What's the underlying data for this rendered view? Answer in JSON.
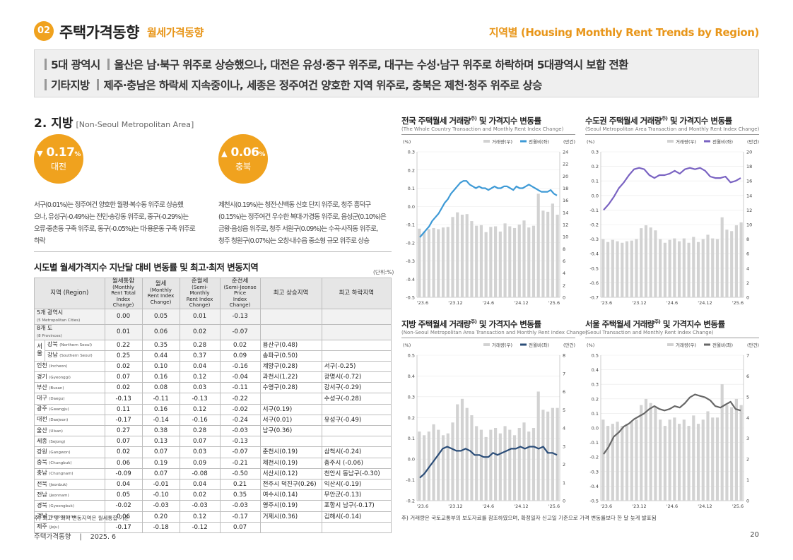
{
  "header": {
    "badge": "02",
    "title": "주택가격동향",
    "subtitle": "월세가격동향",
    "right": "지역별 (Housing Monthly Rent Trends by Region)"
  },
  "summary": {
    "line1_tag": "5대 광역시",
    "line1_text": "울산은 남·북구 위주로 상승했으나, 대전은 유성·중구 위주로, 대구는 수성·남구 위주로 하락하며 5대광역시 보합 전환",
    "line2_tag": "기타지방",
    "line2_text": "제주·충남은 하락세 지속중이나, 세종은 정주여건 양호한 지역 위주로, 충북은 제천·청주 위주로 상승"
  },
  "region": {
    "heading": "2. 지방",
    "heading_en": "[Non-Seoul Metropolitan Area]",
    "down": {
      "arrow": "▼",
      "value": "0.17",
      "unit": "%",
      "name": "대전"
    },
    "up": {
      "arrow": "▲",
      "value": "0.06",
      "unit": "%",
      "name": "충북"
    },
    "down_desc": [
      "서구(0.01%)는 정주여건 양호한 월평·복수동 위주로 상승했",
      "으나, 유성구(-0.49%)는 전민·송강동 위주로, 중구(-0.29%)는",
      "오류·중촌동 구축 위주로, 동구(-0.05%)는 대·용운동 구축 위주로",
      "하락"
    ],
    "up_desc": [
      "제천시(0.19%)는 청전·신백동 신호 단지 위주로, 청주 흥덕구",
      "(0.15%)는 정주여건 우수한 복대·가경동 위주로, 음성군(0.10%)은",
      "금왕·음성읍 위주로, 청주 서원구(0.09%)는 수곡·사직동 위주로,",
      "청주 청원구(0.07%)는 오창·내수읍 중소형 규모 위주로 상승"
    ]
  },
  "table": {
    "title": "시도별 월세가격지수 지난달 대비 변동률 및 최고·최저 변동지역",
    "unit": "(단위:%)",
    "headers": [
      "지역 (Region)",
      "월세통합",
      "(Monthly Rent Total",
      "Index Change)",
      "월세",
      "(Monthly Rent Index",
      "Change)",
      "준월세",
      "(Semi-Monthly",
      "Rent Index Change)",
      "준전세",
      "(Semi-Jeonse Price",
      "Index Change)",
      "최고 상승지역",
      "최고 하락지역"
    ],
    "rows": [
      {
        "k": "5개 광역시",
        "en": "(5 Metropolitan Cities)",
        "a": "0.00",
        "b": "0.05",
        "c": "0.01",
        "d": "-0.13",
        "up": "",
        "dn": ""
      },
      {
        "k": "8개 도",
        "en": "(8 Provinces)",
        "a": "0.01",
        "b": "0.06",
        "c": "0.02",
        "d": "-0.07",
        "up": "",
        "dn": ""
      },
      {
        "k": "강북",
        "en": "(Northern Seoul)",
        "a": "0.22",
        "b": "0.35",
        "c": "0.28",
        "d": "0.02",
        "up": "용산구(0.48)",
        "dn": ""
      },
      {
        "k": "강남",
        "en": "(Southern Seoul)",
        "a": "0.25",
        "b": "0.44",
        "c": "0.37",
        "d": "0.09",
        "up": "송파구(0.50)",
        "dn": ""
      },
      {
        "k": "인천",
        "en": "(Incheon)",
        "a": "0.02",
        "b": "0.10",
        "c": "0.04",
        "d": "-0.16",
        "up": "계양구(0.28)",
        "dn": "서구(-0.25)"
      },
      {
        "k": "경기",
        "en": "(Gyeonggi)",
        "a": "0.07",
        "b": "0.16",
        "c": "0.12",
        "d": "-0.04",
        "up": "과천시(1.22)",
        "dn": "광명시(-0.72)"
      },
      {
        "k": "부산",
        "en": "(Busan)",
        "a": "0.02",
        "b": "0.08",
        "c": "0.03",
        "d": "-0.11",
        "up": "수영구(0.28)",
        "dn": "강서구(-0.29)"
      },
      {
        "k": "대구",
        "en": "(Daegu)",
        "a": "-0.13",
        "b": "-0.11",
        "c": "-0.13",
        "d": "-0.22",
        "up": "",
        "dn": "수성구(-0.28)"
      },
      {
        "k": "광주",
        "en": "(Gwangju)",
        "a": "0.11",
        "b": "0.16",
        "c": "0.12",
        "d": "-0.02",
        "up": "서구(0.19)",
        "dn": ""
      },
      {
        "k": "대전",
        "en": "(Daejeon)",
        "a": "-0.17",
        "b": "-0.14",
        "c": "-0.16",
        "d": "-0.24",
        "up": "서구(0.01)",
        "dn": "유성구(-0.49)"
      },
      {
        "k": "울산",
        "en": "(Ulsan)",
        "a": "0.27",
        "b": "0.38",
        "c": "0.28",
        "d": "-0.03",
        "up": "남구(0.36)",
        "dn": ""
      },
      {
        "k": "세종",
        "en": "(Sejong)",
        "a": "0.07",
        "b": "0.13",
        "c": "0.07",
        "d": "-0.13",
        "up": "",
        "dn": ""
      },
      {
        "k": "강원",
        "en": "(Gangwon)",
        "a": "0.02",
        "b": "0.07",
        "c": "0.03",
        "d": "-0.07",
        "up": "춘천시(0.19)",
        "dn": "삼척시(-0.24)"
      },
      {
        "k": "충북",
        "en": "(Chungbuk)",
        "a": "0.06",
        "b": "0.19",
        "c": "0.09",
        "d": "-0.21",
        "up": "제천시(0.19)",
        "dn": "충주시 (-0.06)"
      },
      {
        "k": "충남",
        "en": "(Chungnam)",
        "a": "-0.09",
        "b": "0.07",
        "c": "-0.08",
        "d": "-0.50",
        "up": "서산시(0.12)",
        "dn": "천안시 동남구(-0.30)"
      },
      {
        "k": "전북",
        "en": "(Jeonbuk)",
        "a": "0.04",
        "b": "-0.01",
        "c": "0.04",
        "d": "0.21",
        "up": "전주시 덕진구(0.26)",
        "dn": "익산시(-0.19)"
      },
      {
        "k": "전남",
        "en": "(Jeonnam)",
        "a": "0.05",
        "b": "-0.10",
        "c": "0.02",
        "d": "0.35",
        "up": "여수시(0.14)",
        "dn": "무안군(-0.13)"
      },
      {
        "k": "경북",
        "en": "(Gyeongbuk)",
        "a": "-0.02",
        "b": "-0.03",
        "c": "-0.03",
        "d": "-0.03",
        "up": "영주시(0.19)",
        "dn": "포항시 남구(-0.17)"
      },
      {
        "k": "경남",
        "en": "(Gyeongnam)",
        "a": "0.06",
        "b": "0.20",
        "c": "0.12",
        "d": "-0.17",
        "up": "거제시(0.36)",
        "dn": "김해시(-0.14)"
      },
      {
        "k": "제주",
        "en": "(Jeju)",
        "a": "-0.17",
        "b": "-0.18",
        "c": "-0.12",
        "d": "0.07",
        "up": "",
        "dn": ""
      }
    ],
    "seoul_label": "서울"
  },
  "notes": {
    "left": "주) 최고 및 최저 변동지역은 월세통합 기준",
    "right": "주) 거래량은 국토교통부의 보도자료를 참조하였으며, 확정일자 신고일 기준으로 가격 변동률보다 한 달 늦게 발표됨"
  },
  "footer": {
    "left": "주택가격동향    |    2025. 6",
    "page": "20"
  },
  "colors": {
    "accent": "#f0a21e",
    "bar": "#d2d2d2",
    "line_whole": "#3e9ad6",
    "line_capital": "#7a63c2",
    "line_nonseoul": "#2b4d78",
    "line_seoul": "#676767"
  },
  "chart_data": [
    {
      "type": "bar+line",
      "title": "전국 주택월세 거래량",
      "title_sup": "주)",
      "title_tail": " 및 가격지수 변동률",
      "subtitle": "(The Whole Country Transaction and Monthly Rent Index Change)",
      "y_left_label": "(%)",
      "y_right_label": "(만건)",
      "legend": [
        "거래량(우)",
        "전월비(좌)"
      ],
      "ylim_left": [
        -0.5,
        0.3
      ],
      "ylim_right": [
        0,
        25
      ],
      "left_ticks": [
        "0.3",
        "0.2",
        "0.1",
        "0.0",
        "-0.1",
        "-0.2",
        "-0.3",
        "-0.4",
        "-0.5"
      ],
      "right_ticks": [
        "24",
        "22",
        "20",
        "18",
        "16",
        "14",
        "12",
        "10",
        "8",
        "6",
        "4",
        "2",
        "0"
      ],
      "x_ticks": [
        "'23.6",
        "'23.12",
        "'24.6",
        "'24.12",
        "'25.6"
      ],
      "bars": [
        11.8,
        11.3,
        11.7,
        11.9,
        11.7,
        12.0,
        12.1,
        13.8,
        14.6,
        14.2,
        14.3,
        13.1,
        12.3,
        12.4,
        11.2,
        12.1,
        12.2,
        11.3,
        12.7,
        12.2,
        11.9,
        12.5,
        13.2,
        12.0,
        12.3,
        17.8,
        14.9,
        14.7,
        16.1,
        14.2
      ],
      "line": [
        -0.17,
        -0.15,
        -0.13,
        -0.11,
        -0.08,
        -0.06,
        -0.04,
        -0.01,
        0.02,
        0.04,
        0.07,
        0.09,
        0.11,
        0.13,
        0.14,
        0.14,
        0.12,
        0.11,
        0.1,
        0.11,
        0.1,
        0.1,
        0.09,
        0.1,
        0.11,
        0.1,
        0.1,
        0.11,
        0.11,
        0.1,
        0.09,
        0.11,
        0.1,
        0.1,
        0.11,
        0.12,
        0.11,
        0.1,
        0.09,
        0.08,
        0.08,
        0.08,
        0.09,
        0.07,
        0.06
      ]
    },
    {
      "type": "bar+line",
      "title": "수도권 주택월세 거래량",
      "title_sup": "주)",
      "title_tail": " 및 가격지수 변동률",
      "subtitle": "(Seoul Metropolitan Area Transaction and Monthly Rent Index Change)",
      "y_left_label": "(%)",
      "y_right_label": "(만건)",
      "legend": [
        "거래량(우)",
        "전월비(좌)"
      ],
      "ylim_left": [
        -0.7,
        0.3
      ],
      "ylim_right": [
        0,
        20
      ],
      "left_ticks": [
        "0.3",
        "0.2",
        "0.1",
        "0.0",
        "-0.1",
        "-0.2",
        "-0.3",
        "-0.4",
        "-0.5",
        "-0.6",
        "-0.7"
      ],
      "right_ticks": [
        "20",
        "18",
        "16",
        "14",
        "12",
        "10",
        "8",
        "6",
        "4",
        "2",
        "0"
      ],
      "x_ticks": [
        "'23.6",
        "'23.12",
        "'24.6",
        "'24.12",
        "'25.6"
      ],
      "bars": [
        8.0,
        7.6,
        7.9,
        7.7,
        7.5,
        7.7,
        7.8,
        8.0,
        9.5,
        9.9,
        9.6,
        9.2,
        8.0,
        7.5,
        7.9,
        8.1,
        7.7,
        8.1,
        7.5,
        8.3,
        7.6,
        8.0,
        8.6,
        8.1,
        8.0,
        11.0,
        9.3,
        9.1,
        9.9,
        10.3
      ],
      "line": [
        -0.1,
        -0.06,
        -0.01,
        0.05,
        0.09,
        0.14,
        0.18,
        0.19,
        0.18,
        0.14,
        0.12,
        0.14,
        0.14,
        0.15,
        0.17,
        0.15,
        0.18,
        0.19,
        0.18,
        0.19,
        0.17,
        0.13,
        0.12,
        0.12,
        0.13,
        0.09,
        0.1,
        0.12
      ]
    },
    {
      "type": "bar+line",
      "title": "지방 주택월세 거래량",
      "title_sup": "주)",
      "title_tail": " 및 가격지수 변동률",
      "subtitle": "(Non-Seoul Metropolitan Area Transaction and Monthly Rent Index Change)",
      "y_left_label": "(%)",
      "y_right_label": "(만건)",
      "legend": [
        "거래량(우)",
        "전월비(좌)"
      ],
      "ylim_left": [
        -0.2,
        0.5
      ],
      "ylim_right": [
        0,
        8
      ],
      "left_ticks": [
        "0.5",
        "0.4",
        "0.3",
        "0.2",
        "0.1",
        "0.0",
        "-0.1",
        "-0.2"
      ],
      "right_ticks": [
        "8",
        "7",
        "6",
        "5",
        "4",
        "3",
        "2",
        "1",
        "0"
      ],
      "x_ticks": [
        "'23.6",
        "'23.12",
        "'24.6",
        "'24.12",
        "'25.6"
      ],
      "bars": [
        3.8,
        3.6,
        3.8,
        4.2,
        3.9,
        3.6,
        3.7,
        4.3,
        5.3,
        5.6,
        5.1,
        4.7,
        4.1,
        3.9,
        3.5,
        3.9,
        4.0,
        3.7,
        4.1,
        3.9,
        3.6,
        4.0,
        4.3,
        3.8,
        4.0,
        6.0,
        5.0,
        4.9,
        5.1,
        5.1
      ],
      "line": [
        -0.09,
        -0.07,
        -0.04,
        -0.01,
        0.02,
        0.05,
        0.06,
        0.05,
        0.04,
        0.04,
        0.05,
        0.04,
        0.02,
        0.02,
        0.01,
        0.01,
        0.03,
        0.02,
        0.03,
        0.04,
        0.05,
        0.05,
        0.06,
        0.05,
        0.06,
        0.06,
        0.05,
        0.06,
        0.03,
        0.03,
        0.02
      ]
    },
    {
      "type": "bar+line",
      "title": "서울 주택월세 거래량",
      "title_sup": "주)",
      "title_tail": " 및 가격지수 변동률",
      "subtitle": "(Seoul Transaction and Monthly Rent Index Change)",
      "y_left_label": "(%)",
      "y_right_label": "(만건)",
      "legend": [
        "거래량(우)",
        "전월비(좌)"
      ],
      "ylim_left": [
        -0.5,
        0.5
      ],
      "ylim_right": [
        0,
        7
      ],
      "left_ticks": [
        "0.5",
        "0.4",
        "0.3",
        "0.2",
        "0.1",
        "0.0",
        "-0.1",
        "-0.2",
        "-0.3",
        "-0.4",
        "-0.5"
      ],
      "right_ticks": [
        "7",
        "6",
        "5",
        "4",
        "3",
        "2",
        "1",
        "0"
      ],
      "x_ticks": [
        "'23.6",
        "'23.12",
        "'24.6",
        "'24.12",
        "'25.6"
      ],
      "bars": [
        3.9,
        3.6,
        3.7,
        3.8,
        3.6,
        3.7,
        3.8,
        3.9,
        4.6,
        4.9,
        4.7,
        4.5,
        3.9,
        3.6,
        3.9,
        4.0,
        3.7,
        3.9,
        3.6,
        4.1,
        3.7,
        3.9,
        4.3,
        4.0,
        4.0,
        5.6,
        4.6,
        4.5,
        4.9,
        4.6
      ],
      "line": [
        -0.18,
        -0.13,
        -0.06,
        -0.03,
        0.01,
        0.03,
        0.06,
        0.08,
        0.1,
        0.13,
        0.15,
        0.13,
        0.12,
        0.13,
        0.15,
        0.14,
        0.17,
        0.21,
        0.23,
        0.22,
        0.21,
        0.19,
        0.15,
        0.14,
        0.16,
        0.18,
        0.13,
        0.12
      ]
    }
  ]
}
